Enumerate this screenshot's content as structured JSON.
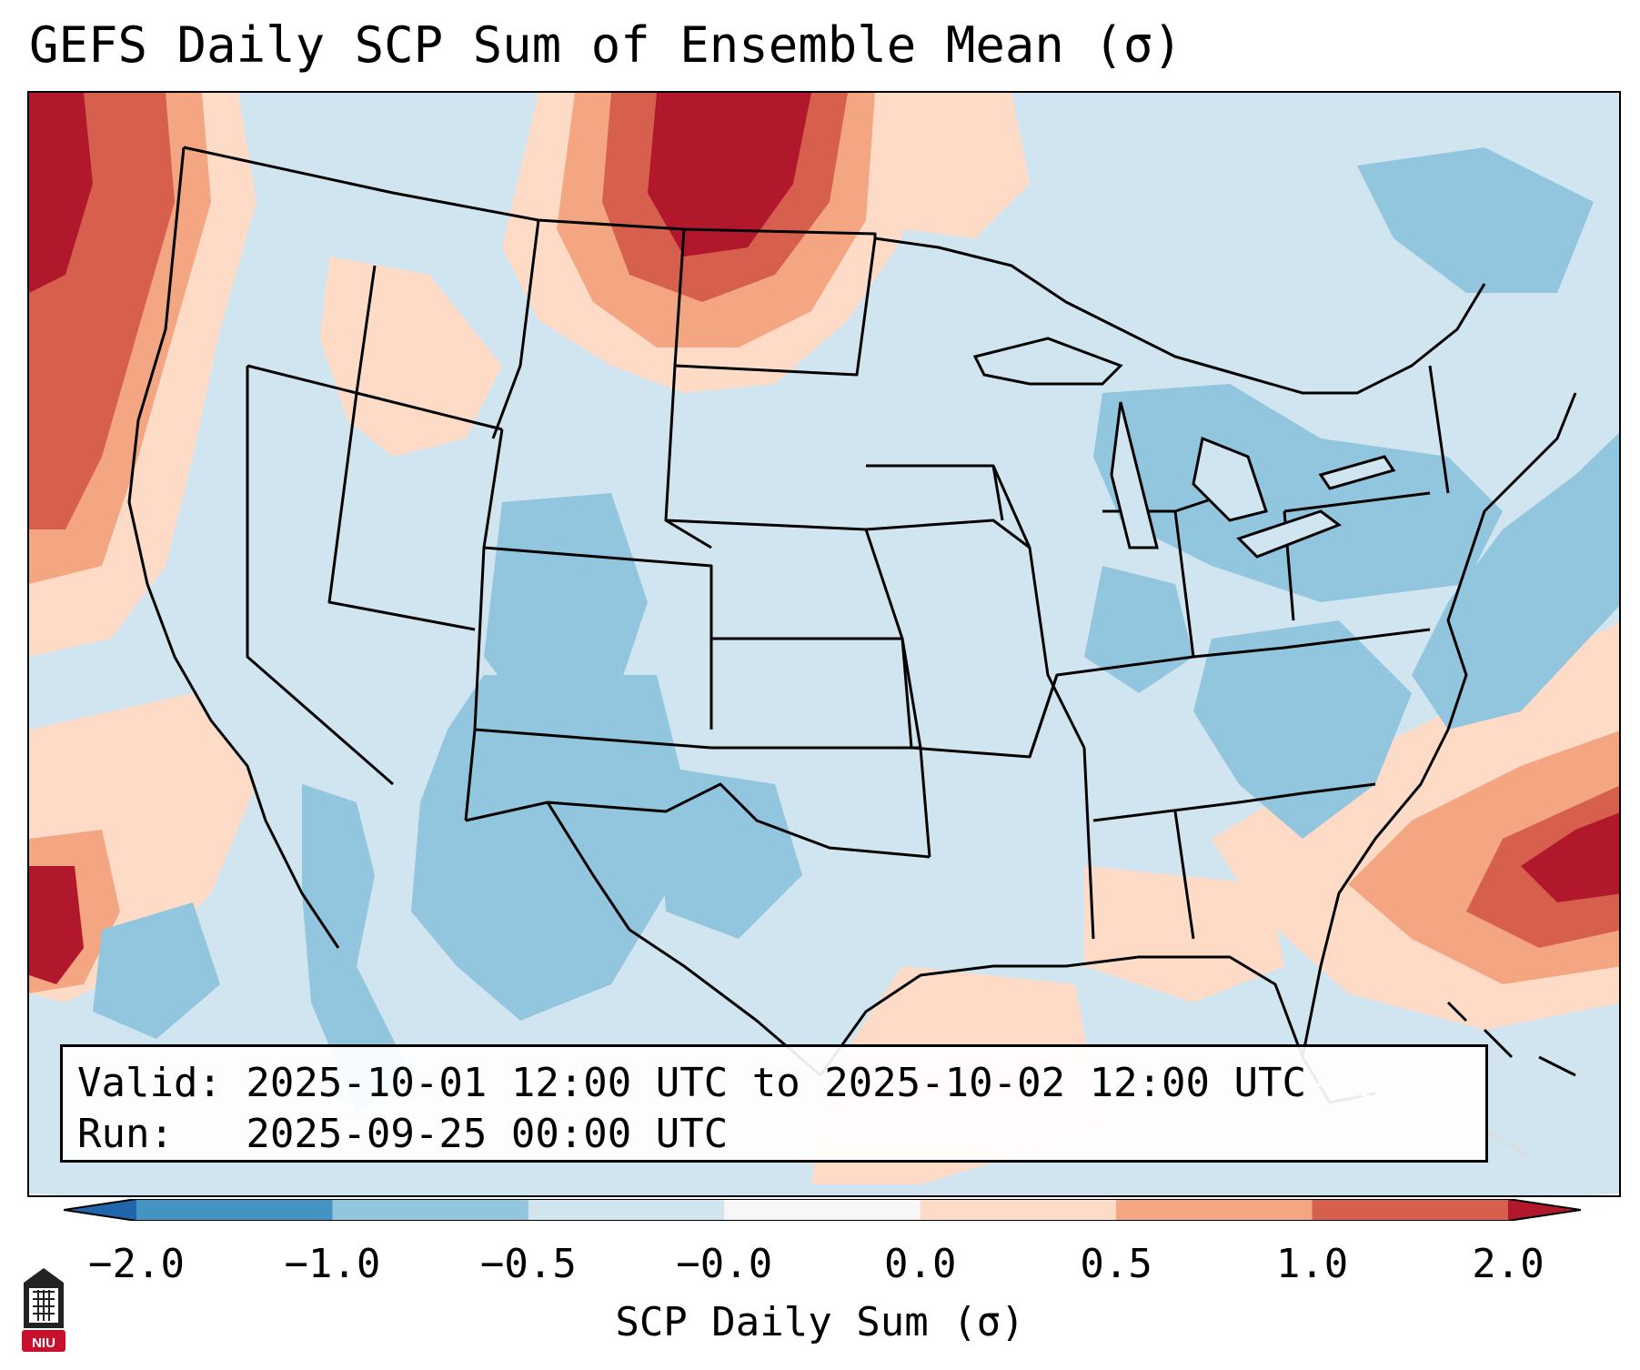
{
  "title": "GEFS Daily SCP Sum of Ensemble Mean (σ)",
  "info": {
    "valid": "Valid: 2025-10-01 12:00 UTC to 2025-10-02 12:00 UTC",
    "run": "Run:   2025-09-25 00:00 UTC"
  },
  "colorbar": {
    "label": "SCP Daily Sum (σ)",
    "ticks": [
      "−2.0",
      "−1.0",
      "−0.5",
      "−0.0",
      "0.0",
      "0.5",
      "1.0",
      "2.0"
    ],
    "colors": [
      "#4393c3",
      "#92c5de",
      "#d1e5f0",
      "#f7f7f7",
      "#fddbc7",
      "#f4a582",
      "#d6604d",
      "#b2182b"
    ],
    "extend_low_color": "#2166ac",
    "extend_high_color": "#b2182b"
  },
  "logo": {
    "text": "NIU",
    "color": "#c8102e"
  }
}
